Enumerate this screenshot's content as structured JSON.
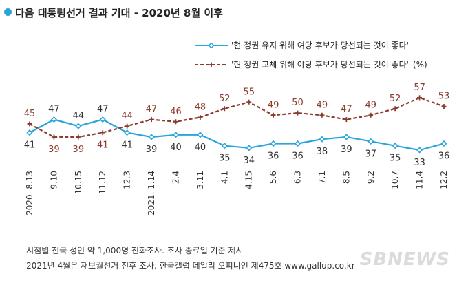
{
  "header": {
    "title": "다음 대통령선거 결과 기대 - 2020년 8월 이후"
  },
  "chart_data": {
    "type": "line",
    "title": "다음 대통령선거 결과 기대 - 2020년 8월 이후",
    "unit": "(%)",
    "legend_position": "top-right",
    "x": [
      "2020. 8.13",
      "9.10",
      "10.15",
      "11.12",
      "12.3",
      "2021. 1.14",
      "2.4",
      "3.11",
      "4.1",
      "4.15",
      "5.6",
      "6.3",
      "7.1",
      "8.5",
      "9.2",
      "10.7",
      "11.4",
      "12.2"
    ],
    "series": [
      {
        "name": "'현 정권 유지 위해 여당 후보가 당선되는 것이 좋다'",
        "color": "#2aa5dc",
        "label_color": "#333333",
        "values": [
          41,
          47,
          44,
          47,
          41,
          39,
          40,
          40,
          35,
          34,
          36,
          36,
          38,
          39,
          37,
          35,
          33,
          36
        ]
      },
      {
        "name": "'현 정권 교체 위해 야당 후보가 당선되는 것이 좋다'",
        "color": "#8b3a2e",
        "label_color": "#8b3a2e",
        "values": [
          45,
          39,
          39,
          41,
          44,
          47,
          46,
          48,
          52,
          55,
          49,
          50,
          49,
          47,
          49,
          52,
          57,
          53
        ]
      }
    ]
  },
  "notes": {
    "line1": "- 시점별 전국 성인 약 1,000명 전화조사. 조사 종료일 기준 제시",
    "line2": "- 2021년 4월은 재보궐선거 전후 조사. 한국갤럽 데일리 오피니언 제475호 www.gallup.co.kr"
  },
  "watermark": "SBNEWS"
}
